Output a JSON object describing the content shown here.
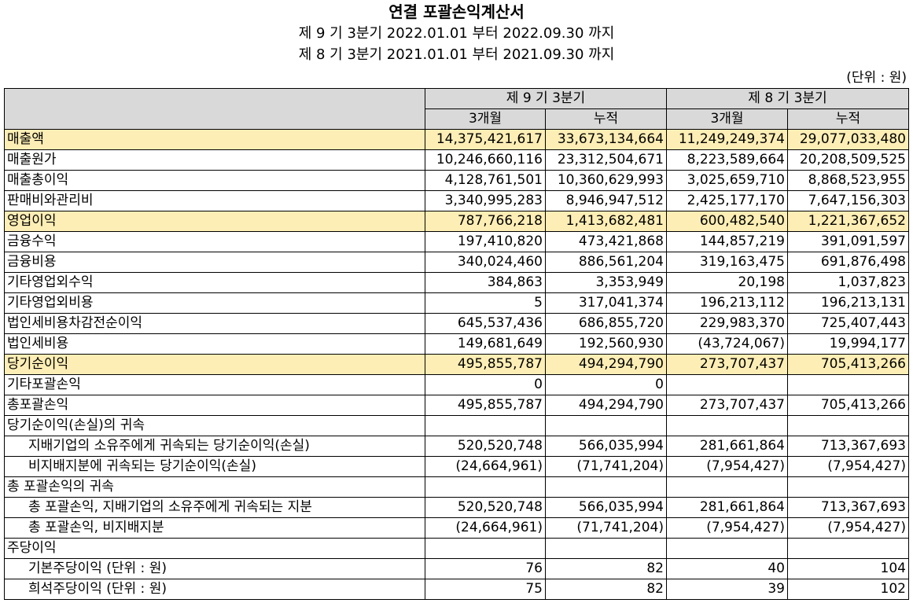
{
  "title": "연결 포괄손익계산서",
  "period_current": "제 9 기 3분기 2022.01.01 부터 2022.09.30 까지",
  "period_prior": "제 8 기 3분기 2021.01.01 부터 2021.09.30 까지",
  "unit": "(단위 : 원)",
  "header": {
    "group_current": "제 9 기 3분기",
    "group_prior": "제 8 기 3분기",
    "col_3m": "3개월",
    "col_cum": "누적"
  },
  "rows": [
    {
      "label": "매출액",
      "c3": "14,375,421,617",
      "cc": "33,673,134,664",
      "p3": "11,249,249,374",
      "pc": "29,077,033,480"
    },
    {
      "label": "매출원가",
      "c3": "10,246,660,116",
      "cc": "23,312,504,671",
      "p3": "8,223,589,664",
      "pc": "20,208,509,525"
    },
    {
      "label": "매출총이익",
      "c3": "4,128,761,501",
      "cc": "10,360,629,993",
      "p3": "3,025,659,710",
      "pc": "8,868,523,955"
    },
    {
      "label": "판매비와관리비",
      "c3": "3,340,995,283",
      "cc": "8,946,947,512",
      "p3": "2,425,177,170",
      "pc": "7,647,156,303"
    },
    {
      "label": "영업이익",
      "c3": "787,766,218",
      "cc": "1,413,682,481",
      "p3": "600,482,540",
      "pc": "1,221,367,652"
    },
    {
      "label": "금융수익",
      "c3": "197,410,820",
      "cc": "473,421,868",
      "p3": "144,857,219",
      "pc": "391,091,597"
    },
    {
      "label": "금융비용",
      "c3": "340,024,460",
      "cc": "886,561,204",
      "p3": "319,163,475",
      "pc": "691,876,498"
    },
    {
      "label": "기타영업외수익",
      "c3": "384,863",
      "cc": "3,353,949",
      "p3": "20,198",
      "pc": "1,037,823"
    },
    {
      "label": "기타영업외비용",
      "c3": "5",
      "cc": "317,041,374",
      "p3": "196,213,112",
      "pc": "196,213,131"
    },
    {
      "label": "법인세비용차감전순이익",
      "c3": "645,537,436",
      "cc": "686,855,720",
      "p3": "229,983,370",
      "pc": "725,407,443"
    },
    {
      "label": "법인세비용",
      "c3": "149,681,649",
      "cc": "192,560,930",
      "p3": "(43,724,067)",
      "pc": "19,994,177"
    },
    {
      "label": "당기순이익",
      "c3": "495,855,787",
      "cc": "494,294,790",
      "p3": "273,707,437",
      "pc": "705,413,266"
    },
    {
      "label": "기타포괄손익",
      "c3": "0",
      "cc": "0",
      "p3": "",
      "pc": ""
    },
    {
      "label": "총포괄손익",
      "c3": "495,855,787",
      "cc": "494,294,790",
      "p3": "273,707,437",
      "pc": "705,413,266"
    },
    {
      "label": "당기순이익(손실)의 귀속",
      "c3": "",
      "cc": "",
      "p3": "",
      "pc": ""
    },
    {
      "label": "지배기업의 소유주에게 귀속되는 당기순이익(손실)",
      "c3": "520,520,748",
      "cc": "566,035,994",
      "p3": "281,661,864",
      "pc": "713,367,693"
    },
    {
      "label": "비지배지분에 귀속되는 당기순이익(손실)",
      "c3": "(24,664,961)",
      "cc": "(71,741,204)",
      "p3": "(7,954,427)",
      "pc": "(7,954,427)"
    },
    {
      "label": "총 포괄손익의 귀속",
      "c3": "",
      "cc": "",
      "p3": "",
      "pc": ""
    },
    {
      "label": "총 포괄손익, 지배기업의 소유주에게 귀속되는 지분",
      "c3": "520,520,748",
      "cc": "566,035,994",
      "p3": "281,661,864",
      "pc": "713,367,693"
    },
    {
      "label": "총 포괄손익, 비지배지분",
      "c3": "(24,664,961)",
      "cc": "(71,741,204)",
      "p3": "(7,954,427)",
      "pc": "(7,954,427)"
    },
    {
      "label": "주당이익",
      "c3": "",
      "cc": "",
      "p3": "",
      "pc": ""
    },
    {
      "label": "기본주당이익 (단위 : 원)",
      "c3": "76",
      "cc": "82",
      "p3": "40",
      "pc": "104"
    },
    {
      "label": "희석주당이익 (단위 : 원)",
      "c3": "75",
      "cc": "82",
      "p3": "39",
      "pc": "102"
    }
  ],
  "highlight_color": "#fdeeb5",
  "header_color": "#d9d9d9"
}
